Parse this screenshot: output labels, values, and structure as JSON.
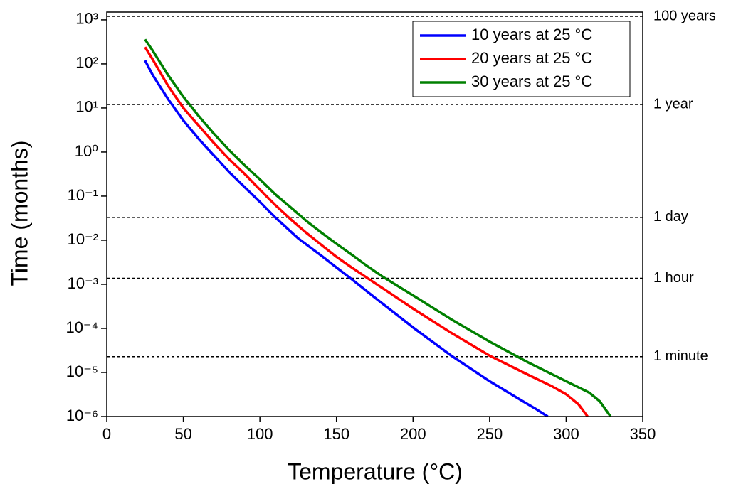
{
  "chart_data": {
    "type": "line",
    "x_label": "Temperature (°C)",
    "y_label": "Time (months)",
    "xlim": [
      0,
      350
    ],
    "xticks": [
      0,
      50,
      100,
      150,
      200,
      250,
      300,
      350
    ],
    "ylim": [
      1e-06,
      1500
    ],
    "log_y": true,
    "yticks": [
      {
        "value": 1000,
        "label": "10³"
      },
      {
        "value": 100,
        "label": "10²"
      },
      {
        "value": 10,
        "label": "10¹"
      },
      {
        "value": 1,
        "label": "10⁰"
      },
      {
        "value": 0.1,
        "label": "10⁻¹"
      },
      {
        "value": 0.01,
        "label": "10⁻²"
      },
      {
        "value": 0.001,
        "label": "10⁻³"
      },
      {
        "value": 0.0001,
        "label": "10⁻⁴"
      },
      {
        "value": 1e-05,
        "label": "10⁻⁵"
      },
      {
        "value": 1e-06,
        "label": "10⁻⁶"
      }
    ],
    "legend": "upper right",
    "reference_lines": [
      {
        "value": 1200,
        "label": "100 years"
      },
      {
        "value": 12,
        "label": "1 year"
      },
      {
        "value": 0.0329,
        "label": "1 day"
      },
      {
        "value": 0.00137,
        "label": "1 hour"
      },
      {
        "value": 2.28e-05,
        "label": "1 minute"
      }
    ],
    "series": [
      {
        "name": "10 years at 25 °C",
        "color": "#0000ff",
        "x": [
          25,
          30,
          40,
          50,
          60,
          70,
          80,
          90,
          100,
          110,
          125,
          140,
          150,
          160,
          175,
          200,
          225,
          250,
          270,
          280,
          288
        ],
        "values": [
          120,
          56,
          16,
          5.2,
          2.0,
          0.83,
          0.35,
          0.16,
          0.074,
          0.033,
          0.011,
          0.0045,
          0.0024,
          0.0013,
          0.0005,
          0.000105,
          2.4e-05,
          6.3e-06,
          2.4e-06,
          1.5e-06,
          1e-06
        ]
      },
      {
        "name": "20 years at 25 °C",
        "color": "#ff0000",
        "x": [
          25,
          30,
          40,
          50,
          60,
          70,
          80,
          90,
          100,
          110,
          120,
          130,
          140,
          150,
          160,
          170,
          185,
          200,
          225,
          250,
          275,
          290,
          300,
          308,
          314
        ],
        "values": [
          240,
          126,
          32,
          10,
          4.0,
          1.6,
          0.68,
          0.32,
          0.14,
          0.063,
          0.03,
          0.015,
          0.0079,
          0.0042,
          0.0024,
          0.0014,
          0.00063,
          0.00028,
          7.9e-05,
          2.4e-05,
          8.9e-06,
          5e-06,
          3.2e-06,
          1.9e-06,
          1e-06
        ]
      },
      {
        "name": "30 years at 25 °C",
        "color": "#008000",
        "x": [
          25,
          30,
          40,
          50,
          60,
          70,
          80,
          90,
          100,
          110,
          120,
          130,
          140,
          150,
          160,
          170,
          180,
          200,
          225,
          250,
          275,
          300,
          315,
          322,
          329
        ],
        "values": [
          360,
          200,
          56,
          18,
          6.6,
          2.6,
          1.1,
          0.5,
          0.24,
          0.11,
          0.056,
          0.028,
          0.015,
          0.0083,
          0.0047,
          0.0026,
          0.0015,
          0.00056,
          0.00016,
          5e-05,
          1.7e-05,
          6.3e-06,
          3.5e-06,
          2.2e-06,
          1e-06
        ]
      }
    ]
  }
}
